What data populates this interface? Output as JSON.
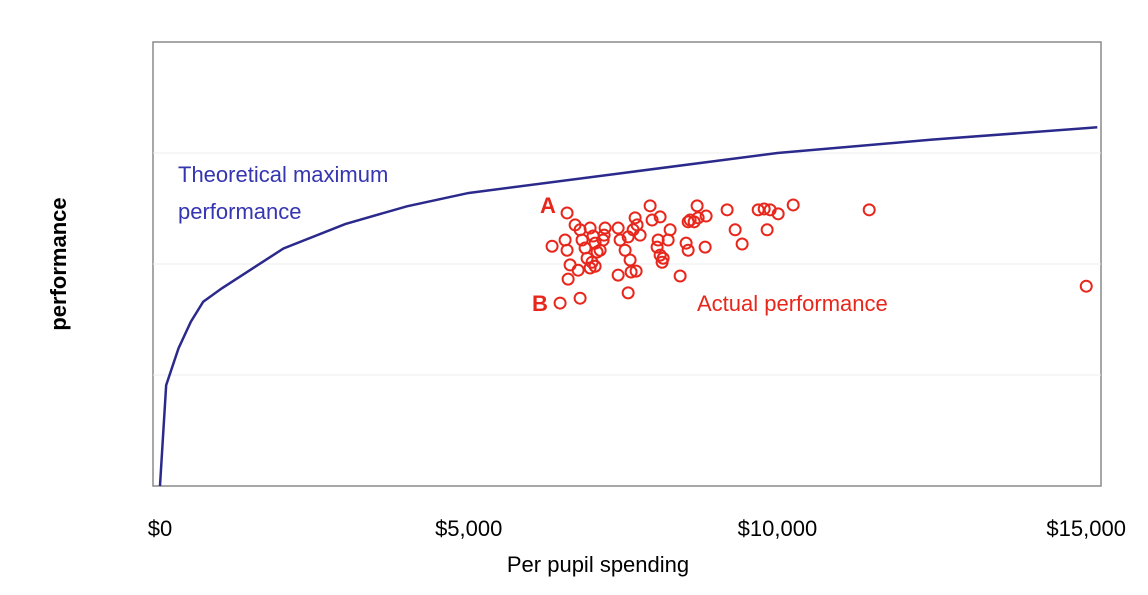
{
  "chart_data": {
    "type": "scatter",
    "xlabel": "Per pupil spending",
    "ylabel": "performance",
    "xlim": [
      -113,
      15240
    ],
    "ylim": [
      0,
      100
    ],
    "xticks": [
      {
        "value": 0,
        "label": "$0"
      },
      {
        "value": 5000,
        "label": "$5,000"
      },
      {
        "value": 10000,
        "label": "$10,000"
      },
      {
        "value": 15000,
        "label": "$15,000"
      }
    ],
    "ygrid": [
      25,
      50,
      75
    ],
    "grid": true,
    "series": [
      {
        "type": "line",
        "color": "#2b2a8c",
        "x": [
          0,
          100,
          300,
          500,
          700,
          1000,
          2000,
          3000,
          4000,
          5000,
          7500,
          10000,
          12500,
          15000,
          15180
        ],
        "values": [
          0,
          22.7,
          31,
          37,
          41.5,
          44.5,
          53.5,
          59,
          63,
          66,
          70.5,
          75,
          78,
          80.6,
          80.8
        ]
      },
      {
        "type": "scatter",
        "color": "#e8271c",
        "x": [
          6593,
          6480,
          6723,
          6804,
          6350,
          6561,
          6593,
          6642,
          6610,
          6836,
          6885,
          6966,
          7015,
          7047,
          7079,
          6998,
          7047,
          6966,
          7128,
          7209,
          7177,
          6772,
          6804,
          6917,
          7193,
          7420,
          7452,
          7533,
          7582,
          7663,
          7695,
          7727,
          7776,
          7614,
          7630,
          7420,
          7711,
          7582,
          7938,
          7970,
          8100,
          8051,
          8100,
          8132,
          8149,
          8068,
          8230,
          8262,
          8424,
          8554,
          8586,
          8651,
          8699,
          8716,
          8845,
          8521,
          8554,
          8829,
          9185,
          9315,
          9428,
          9688,
          9785,
          9833,
          9882,
          10012,
          10255,
          11486,
          15001
        ],
        "values": [
          61.5,
          41.2,
          58.8,
          57.7,
          54.0,
          55.4,
          53.1,
          49.8,
          46.6,
          55.4,
          53.6,
          58.1,
          56.3,
          54.7,
          52.7,
          50.4,
          49.5,
          49.1,
          53.1,
          58.1,
          55.4,
          48.6,
          42.3,
          51.3,
          56.5,
          58.1,
          55.4,
          53.1,
          56.1,
          57.7,
          60.4,
          58.8,
          56.5,
          50.9,
          48.2,
          47.5,
          48.4,
          43.5,
          63.1,
          59.9,
          60.6,
          53.8,
          52.0,
          50.4,
          51.3,
          55.4,
          55.4,
          57.7,
          47.3,
          59.5,
          59.9,
          59.5,
          63.1,
          60.4,
          60.8,
          54.7,
          53.1,
          53.8,
          62.2,
          57.7,
          54.5,
          62.2,
          62.4,
          57.7,
          62.2,
          61.3,
          63.3,
          62.2,
          45.0
        ]
      }
    ],
    "annotations": [
      {
        "lines": [
          "Theoretical maximum",
          "performance"
        ],
        "color": "#3535b0"
      },
      {
        "lines": [
          "A"
        ],
        "color": "#e8271c"
      },
      {
        "lines": [
          "B"
        ],
        "color": "#e8271c"
      },
      {
        "lines": [
          "Actual performance"
        ],
        "color": "#e8271c"
      }
    ]
  }
}
